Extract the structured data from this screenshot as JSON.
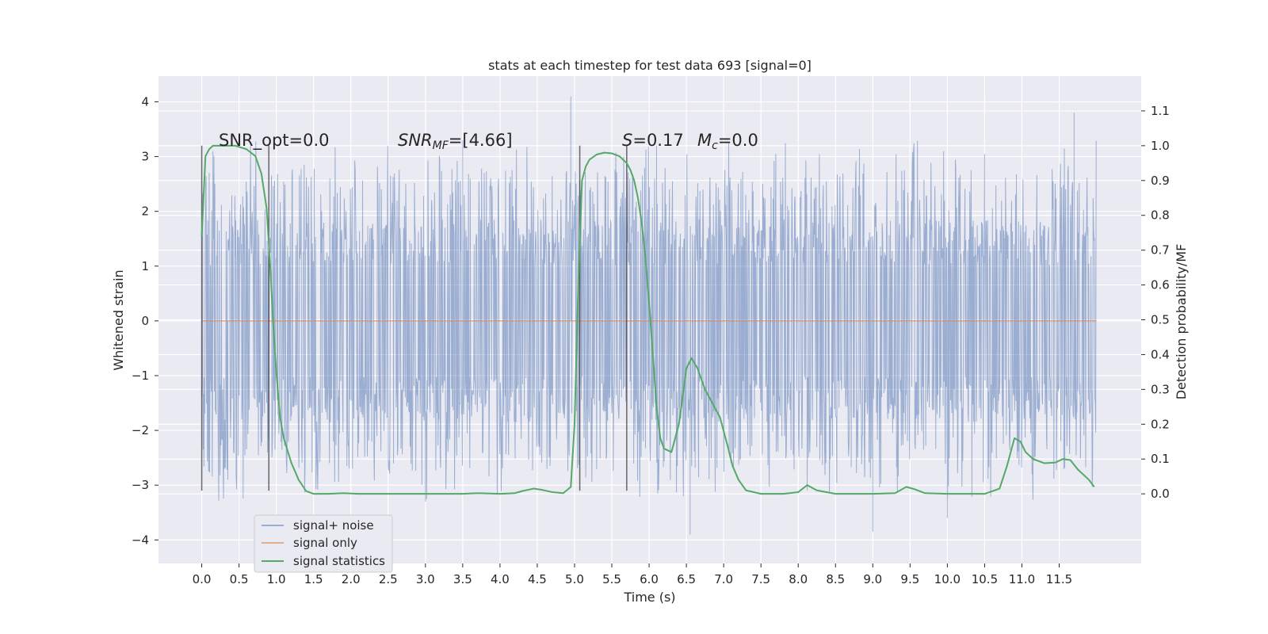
{
  "chart_data": {
    "type": "line",
    "title": "stats at each timestep for test data 693 [signal=0]",
    "xlabel": "Time (s)",
    "ylabel": "Whitened strain",
    "ylabel_right": "Detection probability/MF",
    "xlim": [
      -0.58,
      12.6
    ],
    "ylim": [
      -4.43,
      4.47
    ],
    "ylim_right": [
      -0.2,
      1.2
    ],
    "xticks": [
      0.0,
      0.5,
      1.0,
      1.5,
      2.0,
      2.5,
      3.0,
      3.5,
      4.0,
      4.5,
      5.0,
      5.5,
      6.0,
      6.5,
      7.0,
      7.5,
      8.0,
      8.5,
      9.0,
      9.5,
      10.0,
      10.5,
      11.0,
      11.5
    ],
    "xtick_labels": [
      "0.0",
      "0.5",
      "1.0",
      "1.5",
      "2.0",
      "2.5",
      "3.0",
      "3.5",
      "4.0",
      "4.5",
      "5.0",
      "5.5",
      "6.0",
      "6.5",
      "7.0",
      "7.5",
      "8.0",
      "8.5",
      "9.0",
      "9.5",
      "10.0",
      "10.5",
      "11.0",
      "11.5"
    ],
    "yticks": [
      -4,
      -3,
      -2,
      -1,
      0,
      1,
      2,
      3,
      4
    ],
    "ytick_labels": [
      "−4",
      "−3",
      "−2",
      "−1",
      "0",
      "1",
      "2",
      "3",
      "4"
    ],
    "yticks_right": [
      0.0,
      0.1,
      0.2,
      0.3,
      0.4,
      0.5,
      0.6,
      0.7,
      0.8,
      0.9,
      1.0,
      1.1
    ],
    "ytick_labels_right": [
      "0.0",
      "0.1",
      "0.2",
      "0.3",
      "0.4",
      "0.5",
      "0.6",
      "0.7",
      "0.8",
      "0.9",
      "1.0",
      "1.1"
    ],
    "grid": true,
    "legend_placement": "lower-left",
    "legend": [
      "signal+ noise",
      "signal only",
      "signal statistics"
    ],
    "annotations": {
      "snr_opt": "SNR_opt=0.0",
      "snr_mf_main": "SNR",
      "snr_mf_sub": "MF",
      "snr_mf_value": "=[4.66]",
      "s_main": "S",
      "s_value": "=0.17",
      "mc_main": "M",
      "mc_sub": "c",
      "mc_value": "=0.0"
    },
    "vlines_x": [
      0.0,
      0.9,
      5.07,
      5.7
    ],
    "noise": {
      "x_range": [
        0.0,
        12.0
      ],
      "band_range": [
        -1.85,
        1.85
      ],
      "peak_range": [
        -4.0,
        4.1
      ],
      "color": "#4c72b0"
    },
    "signal_only": {
      "x_range": [
        0.0,
        12.0
      ],
      "value": 0.0,
      "color": "#dd8452"
    },
    "series": [
      {
        "name": "signal statistics",
        "axis": "right",
        "color": "#55a868",
        "x": [
          0.0,
          0.05,
          0.1,
          0.15,
          0.2,
          0.3,
          0.45,
          0.6,
          0.72,
          0.8,
          0.87,
          0.92,
          0.96,
          1.0,
          1.05,
          1.1,
          1.2,
          1.3,
          1.4,
          1.5,
          1.7,
          1.9,
          2.1,
          2.5,
          3.0,
          3.5,
          3.7,
          4.0,
          4.2,
          4.3,
          4.45,
          4.55,
          4.7,
          4.85,
          4.95,
          5.0,
          5.05,
          5.1,
          5.15,
          5.2,
          5.3,
          5.4,
          5.5,
          5.6,
          5.7,
          5.75,
          5.8,
          5.85,
          5.9,
          5.95,
          6.0,
          6.05,
          6.1,
          6.15,
          6.2,
          6.3,
          6.4,
          6.5,
          6.57,
          6.65,
          6.75,
          6.85,
          6.95,
          7.05,
          7.12,
          7.2,
          7.3,
          7.5,
          7.8,
          8.0,
          8.12,
          8.25,
          8.5,
          9.0,
          9.3,
          9.45,
          9.55,
          9.7,
          10.0,
          10.5,
          10.7,
          10.8,
          10.9,
          10.98,
          11.05,
          11.15,
          11.3,
          11.45,
          11.55,
          11.65,
          11.75,
          11.9,
          11.97
        ],
        "y": [
          0.74,
          0.97,
          0.99,
          1.0,
          1.0,
          1.0,
          1.0,
          0.99,
          0.97,
          0.92,
          0.82,
          0.65,
          0.48,
          0.35,
          0.22,
          0.16,
          0.09,
          0.04,
          0.008,
          0.0,
          0.0,
          0.002,
          0.0,
          0.0,
          0.0,
          0.0,
          0.002,
          0.0,
          0.002,
          0.008,
          0.015,
          0.012,
          0.005,
          0.002,
          0.02,
          0.2,
          0.6,
          0.9,
          0.94,
          0.96,
          0.975,
          0.98,
          0.978,
          0.97,
          0.95,
          0.93,
          0.9,
          0.85,
          0.78,
          0.68,
          0.55,
          0.4,
          0.25,
          0.16,
          0.13,
          0.12,
          0.2,
          0.36,
          0.39,
          0.36,
          0.3,
          0.26,
          0.22,
          0.14,
          0.08,
          0.04,
          0.01,
          0.0,
          0.0,
          0.005,
          0.025,
          0.01,
          0.0,
          0.0,
          0.002,
          0.02,
          0.014,
          0.002,
          0.0,
          0.0,
          0.015,
          0.08,
          0.16,
          0.15,
          0.12,
          0.1,
          0.088,
          0.09,
          0.1,
          0.097,
          0.07,
          0.04,
          0.02
        ]
      }
    ]
  }
}
